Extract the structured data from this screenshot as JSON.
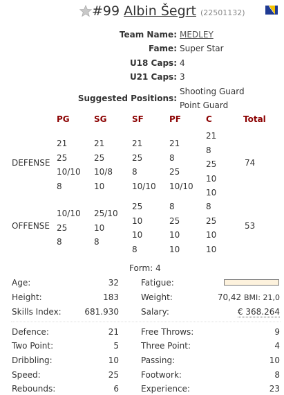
{
  "header": {
    "number": "#99",
    "name": "Albin Šegrt",
    "id": "(22501132)",
    "star_icon": "star-icon",
    "flag_icon": "bosnia-flag-icon"
  },
  "info": {
    "team_label": "Team Name:",
    "team_value": "MEDLEY",
    "fame_label": "Fame:",
    "fame_value": "Super Star",
    "u18_label": "U18 Caps:",
    "u18_value": "4",
    "u21_label": "U21 Caps:",
    "u21_value": "3",
    "positions_label": "Suggested Positions:",
    "positions": [
      "Shooting Guard",
      "Point Guard"
    ]
  },
  "positions_table": {
    "headers": [
      "PG",
      "SG",
      "SF",
      "PF",
      "C",
      "Total"
    ],
    "defense": {
      "label": "DEFENSE",
      "columns": [
        [
          "21",
          "25",
          "10/10",
          "8"
        ],
        [
          "21",
          "25",
          "10/8",
          "10"
        ],
        [
          "21",
          "25",
          "8",
          "10/10"
        ],
        [
          "21",
          "8",
          "25",
          "10/10"
        ],
        [
          "21",
          "8",
          "25",
          "10",
          "10"
        ]
      ],
      "total": "74"
    },
    "offense": {
      "label": "OFFENSE",
      "columns": [
        [
          "10/10",
          "25",
          "8"
        ],
        [
          "25/10",
          "10",
          "8"
        ],
        [
          "25",
          "10",
          "10",
          "8"
        ],
        [
          "8",
          "25",
          "10",
          "10"
        ],
        [
          "8",
          "25",
          "10",
          "10"
        ]
      ],
      "total": "53"
    }
  },
  "form": "Form: 4",
  "details": {
    "age_label": "Age:",
    "age_value": "32",
    "height_label": "Height:",
    "height_value": "183",
    "skills_label": "Skills Index:",
    "skills_value": "681.930",
    "fatigue_label": "Fatigue:",
    "weight_label": "Weight:",
    "weight_value": "70,42",
    "bmi_text": "BMI: 21,0",
    "salary_label": "Salary:",
    "salary_value": "€ 368.264"
  },
  "skills": [
    {
      "left_label": "Defence:",
      "left_value": "21",
      "right_label": "Free Throws:",
      "right_value": "9"
    },
    {
      "left_label": "Two Point:",
      "left_value": "5",
      "right_label": "Three Point:",
      "right_value": "4"
    },
    {
      "left_label": "Dribbling:",
      "left_value": "10",
      "right_label": "Passing:",
      "right_value": "10"
    },
    {
      "left_label": "Speed:",
      "left_value": "25",
      "right_label": "Footwork:",
      "right_value": "8"
    },
    {
      "left_label": "Rebounds:",
      "left_value": "6",
      "right_label": "Experience:",
      "right_value": "23"
    }
  ],
  "colors": {
    "position_header": "#8b0000",
    "fatigue_fill": "#fdf2dd"
  }
}
